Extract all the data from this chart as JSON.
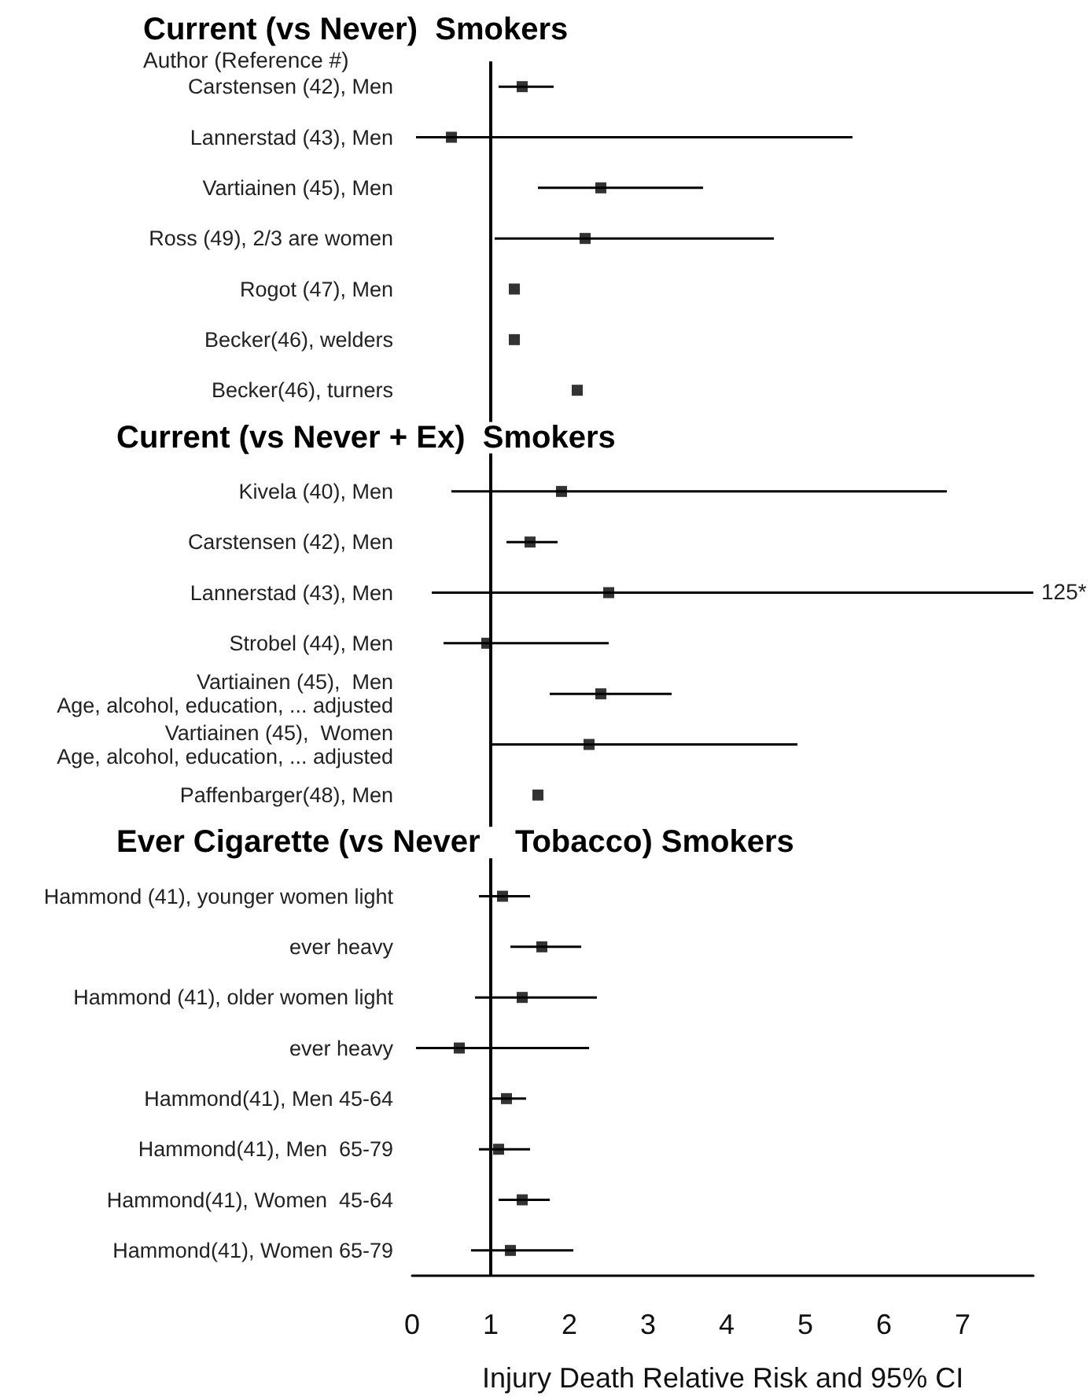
{
  "chart_data": {
    "type": "scatter",
    "orientation": "horizontal",
    "marker": "square",
    "title": "Current (vs Never)  Smokers",
    "subtitle": "Author (Reference #)",
    "xlabel": "Injury Death Relative Risk and 95% CI",
    "categories": [
      "Carstensen (42), Men",
      "Lannerstad (43), Men",
      "Vartiainen (45), Men",
      "Ross (49), 2/3 are women",
      "Rogot (47), Men",
      "Becker(46), welders",
      "Becker(46), turners",
      null,
      "Kivela (40), Men",
      "Carstensen (42), Men",
      "Lannerstad (43), Men",
      "Strobel (44), Men",
      "Vartiainen (45),  Men\nAge, alcohol, education, ... adjusted",
      "Vartiainen (45),  Women\nAge, alcohol, education, ... adjusted",
      "Paffenbarger(48), Men",
      null,
      "Hammond (41), younger women light",
      "ever heavy",
      "Hammond (41), older women light",
      "ever heavy",
      "Hammond(41), Men 45-64",
      "Hammond(41), Men  65-79",
      "Hammond(41), Women  45-64",
      "Hammond(41), Women 65-79"
    ],
    "series": [
      {
        "color": "#000000",
        "values": [
          1.4,
          0.5,
          2.4,
          2.2,
          1.3,
          1.3,
          2.1,
          null,
          1.9,
          1.5,
          2.5,
          0.95,
          2.4,
          2.25,
          1.6,
          null,
          1.15,
          1.65,
          1.4,
          0.6,
          1.2,
          1.1,
          1.4,
          1.25
        ],
        "errors": [
          [
            1.1,
            1.8
          ],
          [
            0.05,
            5.6
          ],
          [
            1.6,
            3.7
          ],
          [
            1.05,
            4.6
          ],
          null,
          null,
          null,
          null,
          [
            0.5,
            6.8
          ],
          [
            1.2,
            1.85
          ],
          [
            0.25,
            7.9
          ],
          [
            0.4,
            2.5
          ],
          [
            1.75,
            3.3
          ],
          [
            1.0,
            4.9
          ],
          null,
          null,
          [
            0.85,
            1.5
          ],
          [
            1.25,
            2.15
          ],
          [
            0.8,
            2.35
          ],
          [
            0.05,
            2.25
          ],
          [
            1.0,
            1.45
          ],
          [
            0.85,
            1.5
          ],
          [
            1.1,
            1.75
          ],
          [
            0.75,
            2.05
          ]
        ]
      }
    ],
    "xlim": [
      0,
      7.9
    ],
    "xticks": [
      0,
      1,
      2,
      3,
      4,
      5,
      6,
      7
    ],
    "ref_lines": [
      {
        "axis": "x",
        "value": 1,
        "color": "#000000"
      }
    ],
    "annotations": [
      "Current (vs Never + Ex)  Smokers",
      "Ever Cigarette (vs Never    Tobacco) Smokers",
      "125*"
    ]
  }
}
